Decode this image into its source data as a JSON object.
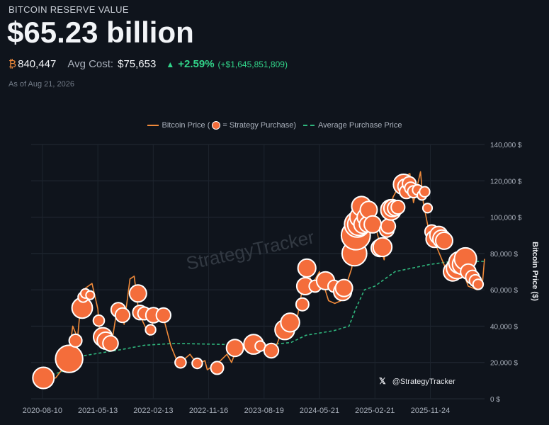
{
  "header": {
    "label": "BITCOIN RESERVE VALUE",
    "value": "$65.23 billion",
    "btc_symbol": "₿",
    "btc_amount": "840,447",
    "avg_cost_label": "Avg Cost:",
    "avg_cost_value": "$75,653",
    "change_arrow": "▲",
    "change_pct": "+2.59%",
    "change_abs": "(+$1,645,851,809)",
    "as_of": "As of Aug 21, 2026"
  },
  "legend": {
    "price_label": "Bitcoin Price (",
    "purchase_label": " = Strategy Purchase)",
    "avg_label": "Average Purchase Price"
  },
  "watermark": "StrategyTracker",
  "credit": {
    "icon": "x-icon",
    "handle": "@StrategyTracker"
  },
  "colors": {
    "price_line": "#f08a3a",
    "purchase_bubble": "#f46d3b",
    "avg_line": "#2fb67d",
    "background": "#0f141c"
  },
  "chart_data": {
    "type": "line",
    "ylabel": "Bitcoin Price ($)",
    "ylim": [
      0,
      140000
    ],
    "yticks": [
      "0 $",
      "20,000 $",
      "40,000 $",
      "60,000 $",
      "80,000 $",
      "100,000 $",
      "120,000 $",
      "140,000 $"
    ],
    "xlim": [
      "2020-06-15",
      "2026-08-21"
    ],
    "xticks": [
      "2020-08-10",
      "2021-05-13",
      "2022-02-13",
      "2022-11-16",
      "2023-08-19",
      "2024-05-21",
      "2025-02-21",
      "2025-11-24"
    ],
    "grid": true,
    "legend_position": "top",
    "series": [
      {
        "name": "Bitcoin Price",
        "points": [
          [
            "2020-08-10",
            11600
          ],
          [
            "2020-09-15",
            10800
          ],
          [
            "2020-10-15",
            11500
          ],
          [
            "2020-11-15",
            16000
          ],
          [
            "2020-12-15",
            20000
          ],
          [
            "2021-01-08",
            40000
          ],
          [
            "2021-02-01",
            33500
          ],
          [
            "2021-02-21",
            57000
          ],
          [
            "2021-03-13",
            61000
          ],
          [
            "2021-04-14",
            63500
          ],
          [
            "2021-05-13",
            49500
          ],
          [
            "2021-05-23",
            35000
          ],
          [
            "2021-06-22",
            31500
          ],
          [
            "2021-07-20",
            30000
          ],
          [
            "2021-08-14",
            47500
          ],
          [
            "2021-09-07",
            51500
          ],
          [
            "2021-09-21",
            41000
          ],
          [
            "2021-10-20",
            66000
          ],
          [
            "2021-11-10",
            67500
          ],
          [
            "2021-12-04",
            47000
          ],
          [
            "2022-01-24",
            35000
          ],
          [
            "2022-02-13",
            42500
          ],
          [
            "2022-03-29",
            47500
          ],
          [
            "2022-05-12",
            29000
          ],
          [
            "2022-06-18",
            19000
          ],
          [
            "2022-08-15",
            24500
          ],
          [
            "2022-09-20",
            19000
          ],
          [
            "2022-10-28",
            21000
          ],
          [
            "2022-11-09",
            16000
          ],
          [
            "2022-11-16",
            16500
          ],
          [
            "2023-01-14",
            21000
          ],
          [
            "2023-02-15",
            24500
          ],
          [
            "2023-03-10",
            20000
          ],
          [
            "2023-04-14",
            30500
          ],
          [
            "2023-06-15",
            25000
          ],
          [
            "2023-07-13",
            31500
          ],
          [
            "2023-08-19",
            26000
          ],
          [
            "2023-10-20",
            29500
          ],
          [
            "2023-11-15",
            37000
          ],
          [
            "2023-12-08",
            44000
          ],
          [
            "2024-01-11",
            46500
          ],
          [
            "2024-01-23",
            39500
          ],
          [
            "2024-02-28",
            62000
          ],
          [
            "2024-03-14",
            73500
          ],
          [
            "2024-04-15",
            63000
          ],
          [
            "2024-05-21",
            70000
          ],
          [
            "2024-07-05",
            54000
          ],
          [
            "2024-08-05",
            52500
          ],
          [
            "2024-09-06",
            54000
          ],
          [
            "2024-10-29",
            72000
          ],
          [
            "2024-11-13",
            90000
          ],
          [
            "2024-12-17",
            106000
          ],
          [
            "2025-01-20",
            108000
          ],
          [
            "2025-02-21",
            96000
          ],
          [
            "2025-04-08",
            76500
          ],
          [
            "2025-05-22",
            111000
          ],
          [
            "2025-07-14",
            122000
          ],
          [
            "2025-08-14",
            124000
          ],
          [
            "2025-09-01",
            108000
          ],
          [
            "2025-10-06",
            125000
          ],
          [
            "2025-10-20",
            108000
          ],
          [
            "2025-11-24",
            88000
          ],
          [
            "2025-12-20",
            85000
          ],
          [
            "2026-02-15",
            70000
          ],
          [
            "2026-04-15",
            76000
          ],
          [
            "2026-06-01",
            62000
          ],
          [
            "2026-07-15",
            60000
          ],
          [
            "2026-08-10",
            63000
          ],
          [
            "2026-08-21",
            77000
          ]
        ]
      },
      {
        "name": "Average Purchase Price",
        "points": [
          [
            "2020-08-10",
            11600
          ],
          [
            "2020-12-15",
            16000
          ],
          [
            "2021-01-15",
            22000
          ],
          [
            "2021-02-20",
            23500
          ],
          [
            "2021-05-13",
            25000
          ],
          [
            "2021-09-01",
            27000
          ],
          [
            "2021-12-31",
            29500
          ],
          [
            "2022-06-01",
            30500
          ],
          [
            "2022-12-31",
            30000
          ],
          [
            "2023-08-19",
            29500
          ],
          [
            "2023-12-31",
            31000
          ],
          [
            "2024-03-15",
            35000
          ],
          [
            "2024-08-01",
            37500
          ],
          [
            "2024-10-15",
            40000
          ],
          [
            "2024-11-15",
            49000
          ],
          [
            "2024-12-31",
            60000
          ],
          [
            "2025-02-21",
            62000
          ],
          [
            "2025-06-01",
            70000
          ],
          [
            "2025-11-24",
            74000
          ],
          [
            "2026-03-01",
            75500
          ],
          [
            "2026-08-21",
            75653
          ]
        ]
      }
    ],
    "purchases": [
      [
        "2020-08-15",
        11500,
        1.25
      ],
      [
        "2020-12-21",
        22000,
        1.6
      ],
      [
        "2021-01-22",
        32000,
        0.75
      ],
      [
        "2021-02-24",
        50000,
        1.2
      ],
      [
        "2021-03-01",
        56000,
        0.6
      ],
      [
        "2021-03-12",
        58000,
        0.55
      ],
      [
        "2021-04-05",
        57000,
        0.5
      ],
      [
        "2021-05-18",
        43000,
        0.65
      ],
      [
        "2021-06-07",
        34000,
        1.1
      ],
      [
        "2021-06-21",
        32000,
        1.0
      ],
      [
        "2021-07-15",
        30500,
        0.9
      ],
      [
        "2021-08-23",
        49000,
        0.85
      ],
      [
        "2021-09-13",
        46000,
        0.85
      ],
      [
        "2021-11-29",
        58000,
        1.0
      ],
      [
        "2021-12-09",
        47500,
        0.85
      ],
      [
        "2021-12-30",
        47000,
        0.75
      ],
      [
        "2022-01-31",
        38000,
        0.6
      ],
      [
        "2022-02-14",
        46000,
        0.9
      ],
      [
        "2022-04-05",
        46000,
        0.85
      ],
      [
        "2022-06-29",
        20000,
        0.65
      ],
      [
        "2022-09-20",
        19500,
        0.6
      ],
      [
        "2022-12-28",
        17000,
        0.75
      ],
      [
        "2023-03-27",
        28000,
        1.0
      ],
      [
        "2023-06-28",
        30000,
        1.15
      ],
      [
        "2023-07-31",
        29000,
        0.6
      ],
      [
        "2023-09-24",
        26500,
        0.85
      ],
      [
        "2023-11-30",
        38000,
        1.15
      ],
      [
        "2023-12-27",
        42000,
        1.1
      ],
      [
        "2024-02-26",
        52000,
        0.75
      ],
      [
        "2024-03-11",
        62000,
        1.0
      ],
      [
        "2024-03-19",
        72000,
        1.05
      ],
      [
        "2024-04-29",
        62000,
        0.7
      ],
      [
        "2024-06-20",
        65000,
        1.05
      ],
      [
        "2024-08-01",
        62000,
        0.7
      ],
      [
        "2024-09-13",
        59000,
        1.05
      ],
      [
        "2024-09-20",
        61000,
        1.0
      ],
      [
        "2024-11-11",
        80000,
        1.45
      ],
      [
        "2024-11-18",
        90000,
        1.7
      ],
      [
        "2024-11-25",
        96000,
        1.5
      ],
      [
        "2024-12-02",
        96000,
        1.3
      ],
      [
        "2024-12-09",
        100000,
        1.2
      ],
      [
        "2024-12-16",
        106000,
        1.15
      ],
      [
        "2024-12-23",
        96000,
        1.05
      ],
      [
        "2025-01-06",
        100000,
        1.0
      ],
      [
        "2025-01-13",
        96000,
        0.9
      ],
      [
        "2025-01-21",
        104000,
        1.0
      ],
      [
        "2025-02-10",
        96000,
        1.0
      ],
      [
        "2025-03-17",
        83000,
        1.0
      ],
      [
        "2025-03-31",
        83500,
        1.1
      ],
      [
        "2025-04-21",
        93000,
        0.85
      ],
      [
        "2025-04-28",
        95000,
        0.85
      ],
      [
        "2025-05-12",
        104000,
        1.2
      ],
      [
        "2025-05-19",
        105000,
        1.0
      ],
      [
        "2025-06-02",
        105000,
        0.9
      ],
      [
        "2025-06-16",
        105500,
        0.8
      ],
      [
        "2025-07-14",
        118000,
        1.2
      ],
      [
        "2025-07-21",
        117000,
        0.85
      ],
      [
        "2025-07-28",
        114000,
        0.8
      ],
      [
        "2025-08-11",
        118500,
        0.8
      ],
      [
        "2025-08-18",
        116000,
        0.7
      ],
      [
        "2025-09-02",
        114000,
        0.7
      ],
      [
        "2025-09-22",
        115000,
        0.6
      ],
      [
        "2025-10-13",
        112000,
        0.55
      ],
      [
        "2025-10-27",
        114000,
        0.6
      ],
      [
        "2025-11-10",
        105000,
        0.55
      ],
      [
        "2025-12-01",
        92000,
        0.8
      ],
      [
        "2025-12-15",
        88000,
        1.0
      ],
      [
        "2026-01-05",
        90000,
        1.05
      ],
      [
        "2026-01-20",
        88000,
        1.05
      ],
      [
        "2026-02-01",
        87000,
        1.0
      ],
      [
        "2026-03-16",
        70000,
        1.1
      ],
      [
        "2026-04-06",
        72000,
        1.25
      ],
      [
        "2026-04-20",
        75000,
        1.3
      ],
      [
        "2026-05-04",
        74000,
        1.2
      ],
      [
        "2026-05-18",
        77000,
        1.3
      ],
      [
        "2026-06-01",
        70000,
        0.9
      ],
      [
        "2026-06-22",
        67000,
        0.8
      ],
      [
        "2026-07-06",
        65000,
        0.7
      ],
      [
        "2026-07-20",
        63000,
        0.6
      ]
    ]
  }
}
